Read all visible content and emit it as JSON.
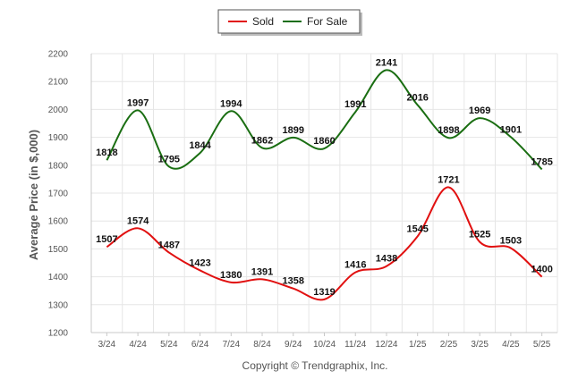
{
  "chart_data": {
    "type": "line",
    "title": "",
    "xlabel": "",
    "ylabel": "Average Price (in $,000)",
    "categories": [
      "3/24",
      "4/24",
      "5/24",
      "6/24",
      "7/24",
      "8/24",
      "9/24",
      "10/24",
      "11/24",
      "12/24",
      "1/25",
      "2/25",
      "3/25",
      "4/25",
      "5/25"
    ],
    "ylim": [
      1200,
      2200
    ],
    "yticks": [
      1200,
      1300,
      1400,
      1500,
      1600,
      1700,
      1800,
      1900,
      2000,
      2100,
      2200
    ],
    "grid": true,
    "legend_position": "top-center",
    "series": [
      {
        "name": "Sold",
        "color": "#e11010",
        "values": [
          1507,
          1574,
          1487,
          1423,
          1380,
          1391,
          1358,
          1319,
          1416,
          1438,
          1545,
          1721,
          1525,
          1503,
          1400
        ]
      },
      {
        "name": "For Sale",
        "color": "#1a6e12",
        "values": [
          1818,
          1997,
          1795,
          1844,
          1994,
          1862,
          1899,
          1860,
          1991,
          2141,
          2016,
          1898,
          1969,
          1901,
          1785
        ]
      }
    ]
  },
  "footer": "Copyright © Trendgraphix, Inc."
}
